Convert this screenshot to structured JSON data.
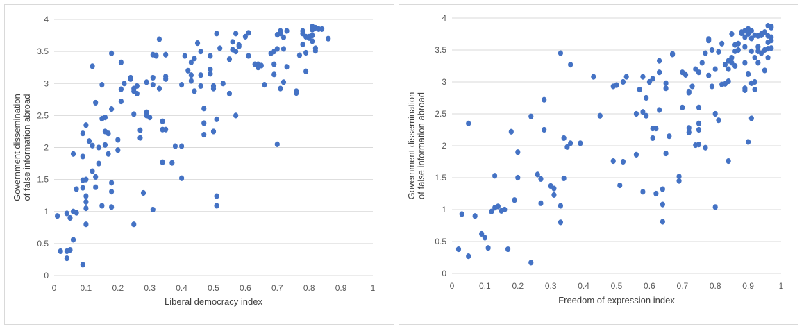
{
  "chart_data": [
    {
      "type": "scatter",
      "xlabel": "Liberal democracy index",
      "ylabel": "Government dissemination of false information abroad",
      "ylabel_lines": [
        "Government dissemination",
        "of false information abroad"
      ],
      "xlim": [
        0,
        1
      ],
      "ylim": [
        0,
        4
      ],
      "x_ticks": [
        "0",
        "0.1",
        "0.2",
        "0.3",
        "0.4",
        "0.5",
        "0.6",
        "0.7",
        "0.8",
        "0.9",
        "1"
      ],
      "y_ticks": [
        "0",
        "0.5",
        "1",
        "1.5",
        "2",
        "2.5",
        "3",
        "3.5",
        "4"
      ],
      "grid": "horizontal",
      "marker_color": "#4472c4",
      "points": [
        [
          0.01,
          0.93
        ],
        [
          0.02,
          0.38
        ],
        [
          0.04,
          0.97
        ],
        [
          0.04,
          0.38
        ],
        [
          0.05,
          0.4
        ],
        [
          0.04,
          0.27
        ],
        [
          0.05,
          0.9
        ],
        [
          0.06,
          1.0
        ],
        [
          0.06,
          0.56
        ],
        [
          0.06,
          1.9
        ],
        [
          0.07,
          1.35
        ],
        [
          0.07,
          0.98
        ],
        [
          0.09,
          2.22
        ],
        [
          0.09,
          1.86
        ],
        [
          0.09,
          1.49
        ],
        [
          0.09,
          1.37
        ],
        [
          0.09,
          0.17
        ],
        [
          0.1,
          2.35
        ],
        [
          0.1,
          1.5
        ],
        [
          0.1,
          1.24
        ],
        [
          0.1,
          1.15
        ],
        [
          0.1,
          1.05
        ],
        [
          0.1,
          0.8
        ],
        [
          0.11,
          2.1
        ],
        [
          0.12,
          3.27
        ],
        [
          0.12,
          2.03
        ],
        [
          0.12,
          1.63
        ],
        [
          0.13,
          1.54
        ],
        [
          0.13,
          1.38
        ],
        [
          0.13,
          2.7
        ],
        [
          0.14,
          2.0
        ],
        [
          0.14,
          1.75
        ],
        [
          0.15,
          2.45
        ],
        [
          0.15,
          2.98
        ],
        [
          0.15,
          1.09
        ],
        [
          0.16,
          2.47
        ],
        [
          0.16,
          2.25
        ],
        [
          0.17,
          2.22
        ],
        [
          0.16,
          2.04
        ],
        [
          0.17,
          1.9
        ],
        [
          0.18,
          1.45
        ],
        [
          0.18,
          1.31
        ],
        [
          0.18,
          1.07
        ],
        [
          0.18,
          2.6
        ],
        [
          0.18,
          3.47
        ],
        [
          0.2,
          2.12
        ],
        [
          0.2,
          1.96
        ],
        [
          0.21,
          3.33
        ],
        [
          0.21,
          2.72
        ],
        [
          0.21,
          2.91
        ],
        [
          0.22,
          3.0
        ],
        [
          0.24,
          3.09
        ],
        [
          0.24,
          3.07
        ],
        [
          0.25,
          2.92
        ],
        [
          0.25,
          2.88
        ],
        [
          0.25,
          2.52
        ],
        [
          0.25,
          0.8
        ],
        [
          0.26,
          2.84
        ],
        [
          0.26,
          2.96
        ],
        [
          0.27,
          2.27
        ],
        [
          0.27,
          2.15
        ],
        [
          0.28,
          1.29
        ],
        [
          0.29,
          2.55
        ],
        [
          0.29,
          3.02
        ],
        [
          0.29,
          2.5
        ],
        [
          0.3,
          2.47
        ],
        [
          0.31,
          3.45
        ],
        [
          0.31,
          3.09
        ],
        [
          0.31,
          2.98
        ],
        [
          0.31,
          1.03
        ],
        [
          0.32,
          3.44
        ],
        [
          0.32,
          3.43
        ],
        [
          0.33,
          3.69
        ],
        [
          0.33,
          2.92
        ],
        [
          0.34,
          2.41
        ],
        [
          0.34,
          2.28
        ],
        [
          0.34,
          1.77
        ],
        [
          0.35,
          3.45
        ],
        [
          0.35,
          3.11
        ],
        [
          0.35,
          3.07
        ],
        [
          0.35,
          2.28
        ],
        [
          0.37,
          1.76
        ],
        [
          0.38,
          2.02
        ],
        [
          0.4,
          2.98
        ],
        [
          0.4,
          2.02
        ],
        [
          0.4,
          1.52
        ],
        [
          0.41,
          3.43
        ],
        [
          0.42,
          3.2
        ],
        [
          0.43,
          3.13
        ],
        [
          0.43,
          3.04
        ],
        [
          0.43,
          3.33
        ],
        [
          0.44,
          3.39
        ],
        [
          0.44,
          2.88
        ],
        [
          0.45,
          3.63
        ],
        [
          0.46,
          3.5
        ],
        [
          0.46,
          3.13
        ],
        [
          0.46,
          2.96
        ],
        [
          0.47,
          2.2
        ],
        [
          0.47,
          2.61
        ],
        [
          0.47,
          2.38
        ],
        [
          0.49,
          3.43
        ],
        [
          0.49,
          3.22
        ],
        [
          0.49,
          3.15
        ],
        [
          0.5,
          2.25
        ],
        [
          0.5,
          2.92
        ],
        [
          0.5,
          2.96
        ],
        [
          0.51,
          2.44
        ],
        [
          0.51,
          1.24
        ],
        [
          0.51,
          1.09
        ],
        [
          0.51,
          3.78
        ],
        [
          0.52,
          3.55
        ],
        [
          0.53,
          3.0
        ],
        [
          0.55,
          3.38
        ],
        [
          0.55,
          2.84
        ],
        [
          0.56,
          3.65
        ],
        [
          0.56,
          3.53
        ],
        [
          0.57,
          3.78
        ],
        [
          0.57,
          3.5
        ],
        [
          0.57,
          2.5
        ],
        [
          0.58,
          3.58
        ],
        [
          0.58,
          3.6
        ],
        [
          0.6,
          3.73
        ],
        [
          0.61,
          3.79
        ],
        [
          0.61,
          3.43
        ],
        [
          0.63,
          3.3
        ],
        [
          0.64,
          3.25
        ],
        [
          0.64,
          3.3
        ],
        [
          0.65,
          3.28
        ],
        [
          0.66,
          2.98
        ],
        [
          0.68,
          3.47
        ],
        [
          0.69,
          3.5
        ],
        [
          0.69,
          3.3
        ],
        [
          0.69,
          3.14
        ],
        [
          0.7,
          3.76
        ],
        [
          0.7,
          3.54
        ],
        [
          0.7,
          2.05
        ],
        [
          0.71,
          3.82
        ],
        [
          0.71,
          3.78
        ],
        [
          0.71,
          2.92
        ],
        [
          0.72,
          3.72
        ],
        [
          0.72,
          3.54
        ],
        [
          0.72,
          3.02
        ],
        [
          0.73,
          3.82
        ],
        [
          0.73,
          3.26
        ],
        [
          0.76,
          2.88
        ],
        [
          0.76,
          2.85
        ],
        [
          0.77,
          3.44
        ],
        [
          0.78,
          3.82
        ],
        [
          0.78,
          3.78
        ],
        [
          0.78,
          3.61
        ],
        [
          0.79,
          3.73
        ],
        [
          0.79,
          3.48
        ],
        [
          0.79,
          3.19
        ],
        [
          0.8,
          3.71
        ],
        [
          0.8,
          3.73
        ],
        [
          0.81,
          3.89
        ],
        [
          0.81,
          3.84
        ],
        [
          0.81,
          3.75
        ],
        [
          0.81,
          3.66
        ],
        [
          0.82,
          3.87
        ],
        [
          0.82,
          3.55
        ],
        [
          0.82,
          3.51
        ],
        [
          0.83,
          3.85
        ],
        [
          0.84,
          3.85
        ],
        [
          0.86,
          3.7
        ]
      ]
    },
    {
      "type": "scatter",
      "xlabel": "Freedom of expression index",
      "ylabel": "Government dissemination of false information abroad",
      "ylabel_lines": [
        "Government dissemination",
        "of false information abroad"
      ],
      "xlim": [
        0,
        1
      ],
      "ylim": [
        0,
        4
      ],
      "x_ticks": [
        "0",
        "0.1",
        "0.2",
        "0.3",
        "0.4",
        "0.5",
        "0.6",
        "0.7",
        "0.8",
        "0.9",
        "1"
      ],
      "y_ticks": [
        "0",
        "0.5",
        "1",
        "1.5",
        "2",
        "2.5",
        "3",
        "3.5",
        "4"
      ],
      "grid": "horizontal",
      "marker_color": "#4472c4",
      "points": [
        [
          0.02,
          0.38
        ],
        [
          0.03,
          0.93
        ],
        [
          0.05,
          2.35
        ],
        [
          0.05,
          0.27
        ],
        [
          0.07,
          0.9
        ],
        [
          0.09,
          0.62
        ],
        [
          0.1,
          0.56
        ],
        [
          0.11,
          0.4
        ],
        [
          0.12,
          0.97
        ],
        [
          0.13,
          1.53
        ],
        [
          0.13,
          1.03
        ],
        [
          0.14,
          1.05
        ],
        [
          0.15,
          0.98
        ],
        [
          0.16,
          1.0
        ],
        [
          0.17,
          0.38
        ],
        [
          0.18,
          2.22
        ],
        [
          0.19,
          1.15
        ],
        [
          0.2,
          1.9
        ],
        [
          0.2,
          1.5
        ],
        [
          0.24,
          0.17
        ],
        [
          0.24,
          2.46
        ],
        [
          0.26,
          1.55
        ],
        [
          0.27,
          1.48
        ],
        [
          0.27,
          1.1
        ],
        [
          0.28,
          2.72
        ],
        [
          0.28,
          2.25
        ],
        [
          0.3,
          1.37
        ],
        [
          0.31,
          1.33
        ],
        [
          0.31,
          1.23
        ],
        [
          0.33,
          3.45
        ],
        [
          0.33,
          0.8
        ],
        [
          0.33,
          1.06
        ],
        [
          0.34,
          2.12
        ],
        [
          0.34,
          1.49
        ],
        [
          0.35,
          1.98
        ],
        [
          0.36,
          2.04
        ],
        [
          0.36,
          3.27
        ],
        [
          0.39,
          2.04
        ],
        [
          0.43,
          3.08
        ],
        [
          0.45,
          2.47
        ],
        [
          0.49,
          2.93
        ],
        [
          0.49,
          1.76
        ],
        [
          0.5,
          2.95
        ],
        [
          0.51,
          1.38
        ],
        [
          0.52,
          3.0
        ],
        [
          0.52,
          1.75
        ],
        [
          0.53,
          3.08
        ],
        [
          0.56,
          2.5
        ],
        [
          0.56,
          1.86
        ],
        [
          0.57,
          2.88
        ],
        [
          0.58,
          3.08
        ],
        [
          0.58,
          2.53
        ],
        [
          0.58,
          1.28
        ],
        [
          0.59,
          2.47
        ],
        [
          0.59,
          2.75
        ],
        [
          0.6,
          3.0
        ],
        [
          0.61,
          3.05
        ],
        [
          0.61,
          2.27
        ],
        [
          0.61,
          2.12
        ],
        [
          0.62,
          2.27
        ],
        [
          0.62,
          1.25
        ],
        [
          0.63,
          3.33
        ],
        [
          0.63,
          3.15
        ],
        [
          0.63,
          2.56
        ],
        [
          0.64,
          1.08
        ],
        [
          0.64,
          0.81
        ],
        [
          0.64,
          1.32
        ],
        [
          0.65,
          2.98
        ],
        [
          0.65,
          2.9
        ],
        [
          0.65,
          1.88
        ],
        [
          0.66,
          2.15
        ],
        [
          0.67,
          3.43
        ],
        [
          0.67,
          3.44
        ],
        [
          0.69,
          1.52
        ],
        [
          0.69,
          1.45
        ],
        [
          0.7,
          3.15
        ],
        [
          0.7,
          2.6
        ],
        [
          0.71,
          3.11
        ],
        [
          0.72,
          2.85
        ],
        [
          0.72,
          2.28
        ],
        [
          0.72,
          2.83
        ],
        [
          0.72,
          2.21
        ],
        [
          0.73,
          2.93
        ],
        [
          0.74,
          2.01
        ],
        [
          0.74,
          3.2
        ],
        [
          0.75,
          3.15
        ],
        [
          0.75,
          2.6
        ],
        [
          0.75,
          2.35
        ],
        [
          0.75,
          2.25
        ],
        [
          0.75,
          2.02
        ],
        [
          0.76,
          3.3
        ],
        [
          0.77,
          1.97
        ],
        [
          0.77,
          3.45
        ],
        [
          0.78,
          3.67
        ],
        [
          0.78,
          3.65
        ],
        [
          0.78,
          3.1
        ],
        [
          0.79,
          3.5
        ],
        [
          0.79,
          2.93
        ],
        [
          0.8,
          3.2
        ],
        [
          0.8,
          2.5
        ],
        [
          0.8,
          1.04
        ],
        [
          0.81,
          3.47
        ],
        [
          0.81,
          3.47
        ],
        [
          0.81,
          2.4
        ],
        [
          0.82,
          3.6
        ],
        [
          0.82,
          2.96
        ],
        [
          0.83,
          3.27
        ],
        [
          0.83,
          2.97
        ],
        [
          0.84,
          3.33
        ],
        [
          0.84,
          3.2
        ],
        [
          0.84,
          3.01
        ],
        [
          0.84,
          1.76
        ],
        [
          0.85,
          3.38
        ],
        [
          0.85,
          3.3
        ],
        [
          0.85,
          3.75
        ],
        [
          0.86,
          3.58
        ],
        [
          0.86,
          3.48
        ],
        [
          0.86,
          3.25
        ],
        [
          0.87,
          3.5
        ],
        [
          0.87,
          3.6
        ],
        [
          0.88,
          3.76
        ],
        [
          0.88,
          3.78
        ],
        [
          0.89,
          3.8
        ],
        [
          0.89,
          3.7
        ],
        [
          0.89,
          3.55
        ],
        [
          0.89,
          3.3
        ],
        [
          0.89,
          2.9
        ],
        [
          0.89,
          2.87
        ],
        [
          0.9,
          3.83
        ],
        [
          0.9,
          3.75
        ],
        [
          0.9,
          3.12
        ],
        [
          0.9,
          2.06
        ],
        [
          0.91,
          3.8
        ],
        [
          0.91,
          3.68
        ],
        [
          0.91,
          3.48
        ],
        [
          0.91,
          2.98
        ],
        [
          0.91,
          2.43
        ],
        [
          0.92,
          3.73
        ],
        [
          0.92,
          3.38
        ],
        [
          0.92,
          3.0
        ],
        [
          0.92,
          2.88
        ],
        [
          0.93,
          3.72
        ],
        [
          0.93,
          3.55
        ],
        [
          0.93,
          3.3
        ],
        [
          0.93,
          3.48
        ],
        [
          0.94,
          3.73
        ],
        [
          0.94,
          3.45
        ],
        [
          0.94,
          3.75
        ],
        [
          0.95,
          3.78
        ],
        [
          0.95,
          3.5
        ],
        [
          0.95,
          3.18
        ],
        [
          0.96,
          3.88
        ],
        [
          0.96,
          3.72
        ],
        [
          0.96,
          3.62
        ],
        [
          0.96,
          3.38
        ],
        [
          0.96,
          3.52
        ],
        [
          0.97,
          3.85
        ],
        [
          0.97,
          3.7
        ],
        [
          0.97,
          3.53
        ],
        [
          0.97,
          3.65
        ],
        [
          0.97,
          3.87
        ]
      ]
    }
  ]
}
